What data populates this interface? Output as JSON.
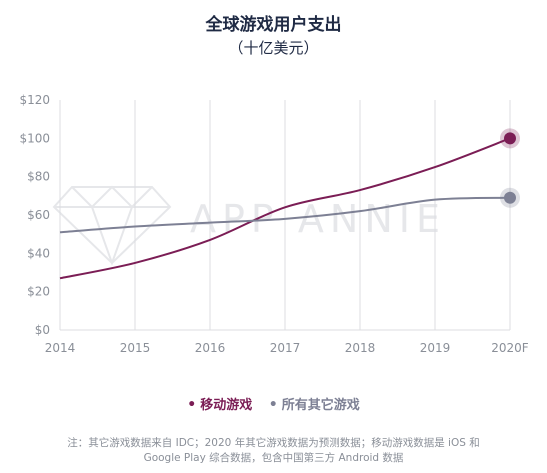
{
  "chart_data": {
    "type": "line",
    "title": "全球游戏用户支出",
    "subtitle": "（十亿美元）",
    "categories": [
      "2014",
      "2015",
      "2016",
      "2017",
      "2018",
      "2019",
      "2020F"
    ],
    "ylim": [
      0,
      120
    ],
    "yticks": [
      "$0",
      "$20",
      "$40",
      "$60",
      "$80",
      "$100",
      "$120"
    ],
    "ytick_values": [
      0,
      20,
      40,
      60,
      80,
      100,
      120
    ],
    "series": [
      {
        "name": "移动游戏",
        "color": "#7b1d55",
        "values": [
          27,
          35,
          47,
          64,
          73,
          85,
          100
        ]
      },
      {
        "name": "所有其它游戏",
        "color": "#7d8094",
        "values": [
          51,
          54,
          56,
          58,
          62,
          68,
          69
        ]
      }
    ],
    "grid": "vertical",
    "legend_position": "bottom-center",
    "watermark": "APP ANNIE"
  },
  "legend": {
    "mobile": "移动游戏",
    "other": "所有其它游戏"
  },
  "note": {
    "line1": "注：其它游戏数据来自 IDC；2020 年其它游戏数据为预测数据；移动游戏数据是 iOS 和",
    "line2": "Google Play 综合数据，包含中国第三方 Android 数据"
  }
}
